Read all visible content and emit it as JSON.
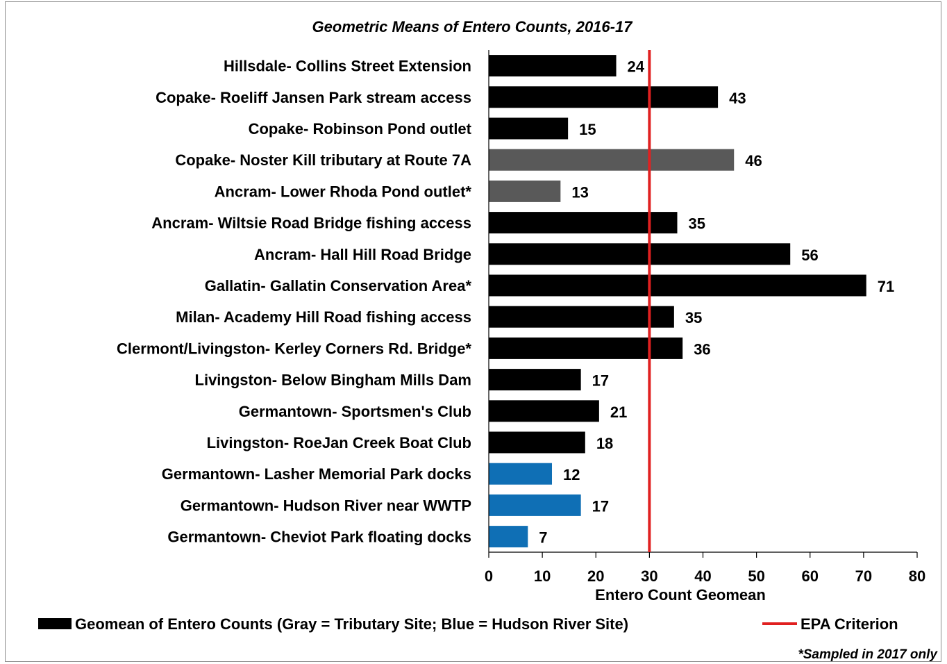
{
  "chart_data": {
    "type": "bar",
    "orientation": "horizontal",
    "title": "Geometric Means of Entero Counts, 2016-17",
    "categories": [
      "Hillsdale- Collins Street Extension",
      "Copake- Roeliff Jansen Park stream access",
      "Copake- Robinson Pond outlet",
      "Copake- Noster Kill tributary at Route 7A",
      "Ancram- Lower Rhoda Pond outlet*",
      "Ancram- Wiltsie Road Bridge fishing access",
      "Ancram- Hall Hill Road Bridge",
      "Gallatin- Gallatin Conservation Area*",
      "Milan- Academy Hill Road fishing access",
      "Clermont/Livingston- Kerley Corners Rd. Bridge*",
      "Livingston- Below Bingham Mills Dam",
      "Germantown- Sportsmen's Club",
      "Livingston- RoeJan Creek Boat Club",
      "Germantown- Lasher Memorial Park docks",
      "Germantown- Hudson River near WWTP",
      "Germantown- Cheviot Park floating docks"
    ],
    "values": [
      23.8,
      42.8,
      14.8,
      45.8,
      13.4,
      35.2,
      56.3,
      70.5,
      34.6,
      36.2,
      17.2,
      20.6,
      18.0,
      11.8,
      17.2,
      7.3
    ],
    "value_labels": [
      "24",
      "43",
      "15",
      "46",
      "13",
      "35",
      "56",
      "71",
      "35",
      "36",
      "17",
      "21",
      "18",
      "12",
      "17",
      "7"
    ],
    "site_types": [
      "main",
      "main",
      "main",
      "tributary",
      "tributary",
      "main",
      "main",
      "main",
      "main",
      "main",
      "main",
      "main",
      "main",
      "hudson",
      "hudson",
      "hudson"
    ],
    "colors": {
      "main": "#000000",
      "tributary": "#595959",
      "hudson": "#0f6fb5",
      "criterion": "#e02020"
    },
    "xlabel": "Entero Count Geomean",
    "xlim": [
      0,
      80
    ],
    "xticks": [
      "0",
      "10",
      "20",
      "30",
      "40",
      "50",
      "60",
      "70",
      "80"
    ],
    "reference_line": {
      "name": "EPA Criterion",
      "value": 30
    },
    "legend": {
      "placement": "bottom",
      "series_label": "Geomean of Entero Counts (Gray = Tributary Site; Blue = Hudson River Site)",
      "line_label": "EPA Criterion"
    },
    "footnote": "*Sampled in 2017 only",
    "grid": false
  }
}
